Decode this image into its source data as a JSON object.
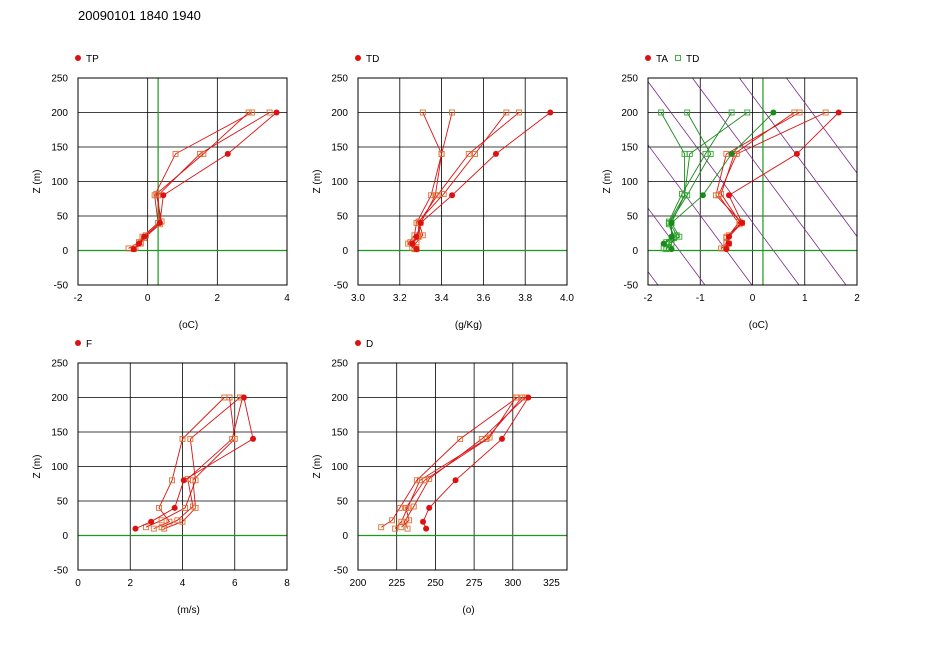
{
  "title": "20090101 1840 1940",
  "colors": {
    "red": "#dd1111",
    "red_open": "#e07030",
    "green": "#1a8a1a",
    "green_open": "#33aa33",
    "green_line": "#1a9a1a",
    "purple": "#7a2a8a",
    "grid": "#000000"
  },
  "chart_data": [
    {
      "type": "line",
      "legend": [
        "TP"
      ],
      "xlabel": "(oC)",
      "ylabel": "Z (m)",
      "xlim": [
        -2,
        4
      ],
      "ylim": [
        -50,
        250
      ],
      "xticks": [
        "-2",
        "0",
        "2",
        "4"
      ],
      "yticks": [
        "-50",
        "0",
        "50",
        "100",
        "150",
        "200",
        "250"
      ],
      "grid": true,
      "zero_lines": {
        "x": 0.3,
        "y": 0
      },
      "series": [
        {
          "role": "solid",
          "points": [
            [
              -0.4,
              2
            ],
            [
              -0.25,
              10
            ],
            [
              -0.1,
              20
            ],
            [
              0.35,
              40
            ],
            [
              0.45,
              80
            ],
            [
              2.3,
              140
            ],
            [
              3.7,
              200
            ]
          ]
        },
        {
          "role": "open",
          "points": [
            [
              -0.55,
              3
            ],
            [
              -0.25,
              12
            ],
            [
              -0.15,
              20
            ],
            [
              0.3,
              40
            ],
            [
              0.2,
              80
            ],
            [
              0.8,
              140
            ],
            [
              3.0,
              200
            ]
          ]
        },
        {
          "role": "open",
          "points": [
            [
              -0.4,
              2
            ],
            [
              -0.2,
              10
            ],
            [
              -0.1,
              18
            ],
            [
              0.35,
              38
            ],
            [
              0.3,
              80
            ],
            [
              1.5,
              140
            ],
            [
              3.5,
              200
            ]
          ]
        },
        {
          "role": "open",
          "points": [
            [
              -0.35,
              4
            ],
            [
              -0.2,
              12
            ],
            [
              -0.05,
              22
            ],
            [
              0.4,
              42
            ],
            [
              0.25,
              82
            ],
            [
              1.6,
              140
            ],
            [
              2.9,
              200
            ]
          ]
        }
      ]
    },
    {
      "type": "line",
      "legend": [
        "TD"
      ],
      "xlabel": "(g/Kg)",
      "ylabel": "Z (m)",
      "xlim": [
        3.0,
        4.0
      ],
      "ylim": [
        -50,
        250
      ],
      "xticks": [
        "3.0",
        "3.2",
        "3.4",
        "3.6",
        "3.8",
        "4.0"
      ],
      "yticks": [
        "-50",
        "0",
        "50",
        "100",
        "150",
        "200",
        "250"
      ],
      "grid": true,
      "zero_lines": {
        "y": 0
      },
      "series": [
        {
          "role": "solid",
          "points": [
            [
              3.28,
              2
            ],
            [
              3.26,
              10
            ],
            [
              3.28,
              20
            ],
            [
              3.3,
              40
            ],
            [
              3.45,
              80
            ],
            [
              3.66,
              140
            ],
            [
              3.92,
              200
            ]
          ]
        },
        {
          "role": "open",
          "points": [
            [
              3.27,
              2
            ],
            [
              3.24,
              10
            ],
            [
              3.27,
              22
            ],
            [
              3.28,
              40
            ],
            [
              3.35,
              80
            ],
            [
              3.4,
              140
            ],
            [
              3.31,
              200
            ]
          ]
        },
        {
          "role": "open",
          "points": [
            [
              3.28,
              3
            ],
            [
              3.25,
              12
            ],
            [
              3.29,
              20
            ],
            [
              3.29,
              40
            ],
            [
              3.38,
              80
            ],
            [
              3.53,
              140
            ],
            [
              3.77,
              200
            ]
          ]
        },
        {
          "role": "open",
          "points": [
            [
              3.26,
              4
            ],
            [
              3.28,
              12
            ],
            [
              3.31,
              22
            ],
            [
              3.29,
              42
            ],
            [
              3.41,
              82
            ],
            [
              3.56,
              140
            ],
            [
              3.71,
              200
            ]
          ]
        },
        {
          "role": "open",
          "points": [
            [
              3.28,
              2
            ],
            [
              3.26,
              10
            ],
            [
              3.29,
              20
            ],
            [
              3.3,
              40
            ],
            [
              3.37,
              80
            ],
            [
              3.4,
              140
            ],
            [
              3.45,
              200
            ]
          ]
        }
      ]
    },
    {
      "type": "line",
      "legend": [
        "TA",
        "TD"
      ],
      "xlabel": "(oC)",
      "ylabel": "Z (m)",
      "xlim": [
        -2,
        2
      ],
      "ylim": [
        -50,
        250
      ],
      "xticks": [
        "-2",
        "-1",
        "0",
        "1",
        "2"
      ],
      "yticks": [
        "-50",
        "0",
        "50",
        "100",
        "150",
        "200",
        "250"
      ],
      "grid": true,
      "zero_lines": {
        "x": 0.2,
        "y": 0
      },
      "dry_adiabats": [
        -2.3,
        -1.4,
        -0.5,
        0.4,
        1.3,
        2.2,
        3.1
      ],
      "series": [
        {
          "role": "solid",
          "points": [
            [
              -0.5,
              2
            ],
            [
              -0.45,
              10
            ],
            [
              -0.45,
              20
            ],
            [
              -0.2,
              40
            ],
            [
              -0.45,
              80
            ],
            [
              0.85,
              140
            ],
            [
              1.65,
              200
            ]
          ]
        },
        {
          "role": "open",
          "points": [
            [
              -0.55,
              3
            ],
            [
              -0.5,
              12
            ],
            [
              -0.5,
              20
            ],
            [
              -0.2,
              40
            ],
            [
              -0.7,
              80
            ],
            [
              -0.5,
              140
            ],
            [
              0.9,
              200
            ]
          ]
        },
        {
          "role": "open",
          "points": [
            [
              -0.6,
              3
            ],
            [
              -0.45,
              10
            ],
            [
              -0.5,
              18
            ],
            [
              -0.25,
              38
            ],
            [
              -0.65,
              80
            ],
            [
              -0.3,
              140
            ],
            [
              1.4,
              200
            ]
          ]
        },
        {
          "role": "open",
          "points": [
            [
              -0.5,
              4
            ],
            [
              -0.5,
              12
            ],
            [
              -0.45,
              22
            ],
            [
              -0.25,
              42
            ],
            [
              -0.6,
              82
            ],
            [
              -0.35,
              140
            ],
            [
              0.8,
              200
            ]
          ]
        },
        {
          "role": "solid_green",
          "points": [
            [
              -1.55,
              2
            ],
            [
              -1.7,
              10
            ],
            [
              -1.55,
              20
            ],
            [
              -1.55,
              40
            ],
            [
              -0.95,
              80
            ],
            [
              -0.4,
              140
            ],
            [
              0.4,
              200
            ]
          ]
        },
        {
          "role": "open_green",
          "points": [
            [
              -1.7,
              3
            ],
            [
              -1.65,
              12
            ],
            [
              -1.5,
              20
            ],
            [
              -1.6,
              40
            ],
            [
              -1.3,
              80
            ],
            [
              -1.3,
              140
            ],
            [
              -1.75,
              200
            ]
          ]
        },
        {
          "role": "open_green",
          "points": [
            [
              -1.6,
              4
            ],
            [
              -1.6,
              12
            ],
            [
              -1.45,
              22
            ],
            [
              -1.6,
              42
            ],
            [
              -1.35,
              82
            ],
            [
              -0.9,
              140
            ],
            [
              -0.4,
              200
            ]
          ]
        },
        {
          "role": "open_green",
          "points": [
            [
              -1.65,
              2
            ],
            [
              -1.55,
              10
            ],
            [
              -1.5,
              18
            ],
            [
              -1.6,
              38
            ],
            [
              -1.25,
              80
            ],
            [
              -0.8,
              140
            ],
            [
              -1.25,
              200
            ]
          ]
        },
        {
          "role": "open_green",
          "points": [
            [
              -1.6,
              3
            ],
            [
              -1.6,
              10
            ],
            [
              -1.4,
              20
            ],
            [
              -1.55,
              40
            ],
            [
              -1.3,
              80
            ],
            [
              -1.2,
              140
            ],
            [
              -0.1,
              200
            ]
          ]
        }
      ]
    },
    {
      "type": "line",
      "legend": [
        "F"
      ],
      "xlabel": "(m/s)",
      "ylabel": "Z (m)",
      "xlim": [
        0,
        8
      ],
      "ylim": [
        -50,
        250
      ],
      "xticks": [
        "0",
        "2",
        "4",
        "6",
        "8"
      ],
      "yticks": [
        "-50",
        "0",
        "50",
        "100",
        "150",
        "200",
        "250"
      ],
      "grid": true,
      "zero_lines": {
        "y": 0
      },
      "series": [
        {
          "role": "solid",
          "points": [
            [
              2.2,
              10
            ],
            [
              2.8,
              20
            ],
            [
              3.7,
              40
            ],
            [
              4.05,
              80
            ],
            [
              6.7,
              140
            ],
            [
              6.35,
              200
            ]
          ]
        },
        {
          "role": "open",
          "points": [
            [
              3.3,
              10
            ],
            [
              4.0,
              20
            ],
            [
              4.5,
              40
            ],
            [
              4.4,
              80
            ],
            [
              6.0,
              140
            ],
            [
              5.8,
              200
            ]
          ]
        },
        {
          "role": "open",
          "points": [
            [
              2.6,
              12
            ],
            [
              3.2,
              22
            ],
            [
              4.1,
              40
            ],
            [
              4.5,
              80
            ],
            [
              4.3,
              140
            ],
            [
              6.2,
              200
            ]
          ]
        },
        {
          "role": "open",
          "points": [
            [
              2.9,
              10
            ],
            [
              3.5,
              20
            ],
            [
              3.1,
              40
            ],
            [
              3.6,
              80
            ],
            [
              4.0,
              140
            ],
            [
              5.6,
              200
            ]
          ]
        },
        {
          "role": "open",
          "points": [
            [
              3.2,
              12
            ],
            [
              3.8,
              22
            ],
            [
              4.4,
              42
            ],
            [
              4.2,
              82
            ],
            [
              5.9,
              140
            ],
            [
              6.3,
              200
            ]
          ]
        }
      ]
    },
    {
      "type": "line",
      "legend": [
        "D"
      ],
      "xlabel": "(o)",
      "ylabel": "Z (m)",
      "xlim": [
        200,
        335
      ],
      "ylim": [
        -50,
        250
      ],
      "xticks": [
        "200",
        "225",
        "250",
        "275",
        "300",
        "325"
      ],
      "yticks": [
        "-50",
        "0",
        "50",
        "100",
        "150",
        "200",
        "250"
      ],
      "grid": true,
      "zero_lines": {
        "y": 0
      },
      "series": [
        {
          "role": "solid",
          "points": [
            [
              244,
              10
            ],
            [
              242,
              20
            ],
            [
              246,
              40
            ],
            [
              263,
              80
            ],
            [
              293,
              140
            ],
            [
              310,
              200
            ]
          ]
        },
        {
          "role": "open",
          "points": [
            [
              224,
              10
            ],
            [
              228,
              20
            ],
            [
              232,
              40
            ],
            [
              240,
              80
            ],
            [
              283,
              140
            ],
            [
              306,
              200
            ]
          ]
        },
        {
          "role": "open",
          "points": [
            [
              215,
              12
            ],
            [
              222,
              22
            ],
            [
              227,
              40
            ],
            [
              238,
              80
            ],
            [
              266,
              140
            ],
            [
              303,
              200
            ]
          ]
        },
        {
          "role": "open",
          "points": [
            [
              232,
              10
            ],
            [
              230,
              20
            ],
            [
              236,
              42
            ],
            [
              246,
              82
            ],
            [
              280,
              140
            ],
            [
              308,
              200
            ]
          ]
        },
        {
          "role": "open",
          "points": [
            [
              228,
              12
            ],
            [
              233,
              22
            ],
            [
              231,
              40
            ],
            [
              243,
              80
            ],
            [
              285,
              142
            ],
            [
              302,
              200
            ]
          ]
        }
      ]
    }
  ]
}
